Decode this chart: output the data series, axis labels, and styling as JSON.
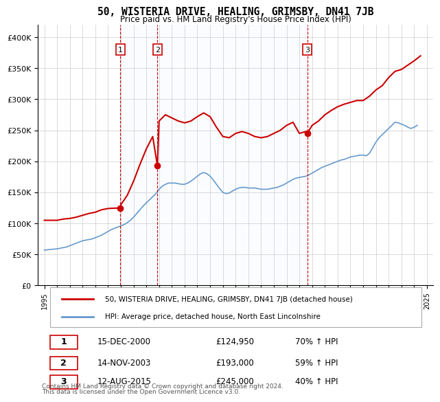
{
  "title": "50, WISTERIA DRIVE, HEALING, GRIMSBY, DN41 7JB",
  "subtitle": "Price paid vs. HM Land Registry's House Price Index (HPI)",
  "legend_line1": "50, WISTERIA DRIVE, HEALING, GRIMSBY, DN41 7JB (detached house)",
  "legend_line2": "HPI: Average price, detached house, North East Lincolnshire",
  "footer1": "Contains HM Land Registry data © Crown copyright and database right 2024.",
  "footer2": "This data is licensed under the Open Government Licence v3.0.",
  "transactions": [
    {
      "num": 1,
      "date": "15-DEC-2000",
      "price": "£124,950",
      "hpi": "70% ↑ HPI",
      "year": 2000.96
    },
    {
      "num": 2,
      "date": "14-NOV-2003",
      "price": "£193,000",
      "hpi": "59% ↑ HPI",
      "year": 2003.87
    },
    {
      "num": 3,
      "date": "12-AUG-2015",
      "price": "£245,000",
      "hpi": "40% ↑ HPI",
      "year": 2015.62
    }
  ],
  "transaction_prices": [
    124950,
    193000,
    245000
  ],
  "red_color": "#cc0000",
  "blue_color": "#6699cc",
  "bg_shade_color": "#ddeeff",
  "grid_color": "#cccccc",
  "ylim": [
    0,
    420000
  ],
  "yticks": [
    0,
    50000,
    100000,
    150000,
    200000,
    250000,
    300000,
    350000,
    400000
  ],
  "hpi_data": {
    "years": [
      1995.0,
      1995.25,
      1995.5,
      1995.75,
      1996.0,
      1996.25,
      1996.5,
      1996.75,
      1997.0,
      1997.25,
      1997.5,
      1997.75,
      1998.0,
      1998.25,
      1998.5,
      1998.75,
      1999.0,
      1999.25,
      1999.5,
      1999.75,
      2000.0,
      2000.25,
      2000.5,
      2000.75,
      2001.0,
      2001.25,
      2001.5,
      2001.75,
      2002.0,
      2002.25,
      2002.5,
      2002.75,
      2003.0,
      2003.25,
      2003.5,
      2003.75,
      2004.0,
      2004.25,
      2004.5,
      2004.75,
      2005.0,
      2005.25,
      2005.5,
      2005.75,
      2006.0,
      2006.25,
      2006.5,
      2006.75,
      2007.0,
      2007.25,
      2007.5,
      2007.75,
      2008.0,
      2008.25,
      2008.5,
      2008.75,
      2009.0,
      2009.25,
      2009.5,
      2009.75,
      2010.0,
      2010.25,
      2010.5,
      2010.75,
      2011.0,
      2011.25,
      2011.5,
      2011.75,
      2012.0,
      2012.25,
      2012.5,
      2012.75,
      2013.0,
      2013.25,
      2013.5,
      2013.75,
      2014.0,
      2014.25,
      2014.5,
      2014.75,
      2015.0,
      2015.25,
      2015.5,
      2015.75,
      2016.0,
      2016.25,
      2016.5,
      2016.75,
      2017.0,
      2017.25,
      2017.5,
      2017.75,
      2018.0,
      2018.25,
      2018.5,
      2018.75,
      2019.0,
      2019.25,
      2019.5,
      2019.75,
      2020.0,
      2020.25,
      2020.5,
      2020.75,
      2021.0,
      2021.25,
      2021.5,
      2021.75,
      2022.0,
      2022.25,
      2022.5,
      2022.75,
      2023.0,
      2023.25,
      2023.5,
      2023.75,
      2024.0,
      2024.25
    ],
    "values": [
      57000,
      57500,
      58000,
      58500,
      59000,
      60000,
      61000,
      62000,
      64000,
      66000,
      68000,
      70000,
      72000,
      73000,
      74000,
      75000,
      77000,
      79000,
      81000,
      84000,
      87000,
      90000,
      92000,
      94000,
      96000,
      98000,
      101000,
      105000,
      110000,
      116000,
      122000,
      128000,
      133000,
      138000,
      143000,
      148000,
      155000,
      160000,
      163000,
      165000,
      165000,
      165000,
      164000,
      163000,
      163000,
      165000,
      168000,
      172000,
      176000,
      180000,
      182000,
      180000,
      176000,
      170000,
      163000,
      156000,
      150000,
      148000,
      149000,
      152000,
      155000,
      157000,
      158000,
      158000,
      157000,
      157000,
      157000,
      156000,
      155000,
      155000,
      155000,
      156000,
      157000,
      158000,
      160000,
      162000,
      165000,
      168000,
      171000,
      173000,
      174000,
      175000,
      176000,
      178000,
      181000,
      184000,
      187000,
      190000,
      192000,
      194000,
      196000,
      198000,
      200000,
      202000,
      203000,
      205000,
      207000,
      208000,
      209000,
      210000,
      210000,
      209000,
      213000,
      222000,
      231000,
      238000,
      243000,
      248000,
      253000,
      258000,
      263000,
      262000,
      260000,
      258000,
      255000,
      253000,
      255000,
      258000
    ]
  },
  "property_data": {
    "years": [
      1995.0,
      1995.5,
      1996.0,
      1996.5,
      1997.0,
      1997.5,
      1998.0,
      1998.5,
      1999.0,
      1999.5,
      2000.0,
      2000.5,
      2000.96,
      2001.0,
      2001.5,
      2002.0,
      2002.5,
      2003.0,
      2003.5,
      2003.87,
      2004.0,
      2004.5,
      2005.0,
      2005.5,
      2006.0,
      2006.5,
      2007.0,
      2007.5,
      2008.0,
      2008.5,
      2009.0,
      2009.5,
      2010.0,
      2010.5,
      2011.0,
      2011.5,
      2012.0,
      2012.5,
      2013.0,
      2013.5,
      2014.0,
      2014.5,
      2015.0,
      2015.5,
      2015.62,
      2016.0,
      2016.5,
      2017.0,
      2017.5,
      2018.0,
      2018.5,
      2019.0,
      2019.5,
      2020.0,
      2020.5,
      2021.0,
      2021.5,
      2022.0,
      2022.5,
      2023.0,
      2023.5,
      2024.0,
      2024.5
    ],
    "values": [
      105000,
      105000,
      105000,
      107000,
      108000,
      110000,
      113000,
      116000,
      118000,
      122000,
      124000,
      124500,
      124950,
      130000,
      145000,
      168000,
      195000,
      220000,
      240000,
      193000,
      265000,
      275000,
      270000,
      265000,
      262000,
      265000,
      272000,
      278000,
      272000,
      255000,
      240000,
      238000,
      245000,
      248000,
      245000,
      240000,
      238000,
      240000,
      245000,
      250000,
      258000,
      263000,
      245000,
      248000,
      245000,
      258000,
      265000,
      275000,
      282000,
      288000,
      292000,
      295000,
      298000,
      298000,
      305000,
      315000,
      322000,
      335000,
      345000,
      348000,
      355000,
      362000,
      370000
    ]
  }
}
